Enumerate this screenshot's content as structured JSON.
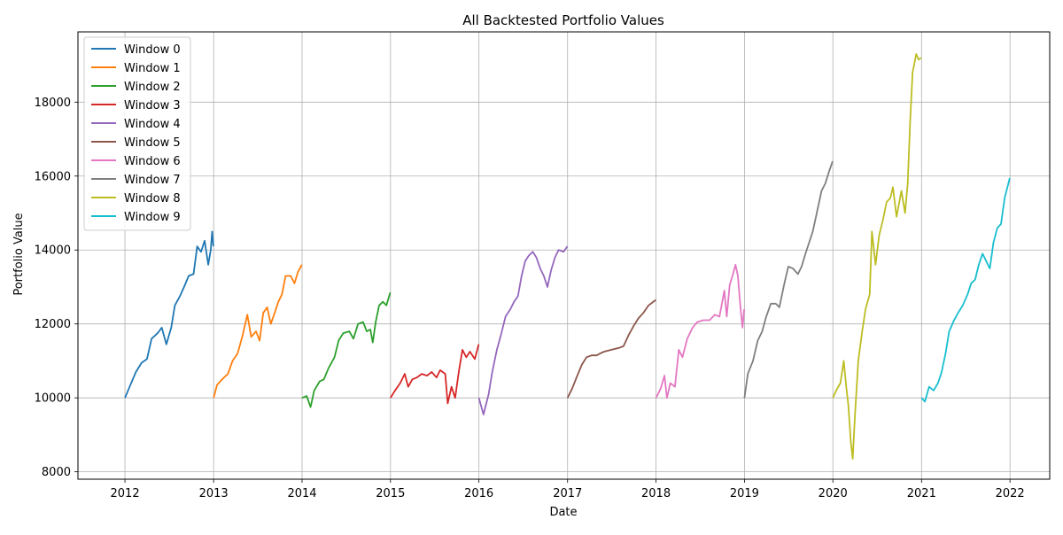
{
  "chart_data": {
    "type": "line",
    "title": "All Backtested Portfolio Values",
    "xlabel": "Date",
    "ylabel": "Portfolio Value",
    "xlim": [
      "2011-06-21",
      "2022-06-14"
    ],
    "ylim": [
      7800,
      19900
    ],
    "xticks": [
      "2012",
      "2013",
      "2014",
      "2015",
      "2016",
      "2017",
      "2018",
      "2019",
      "2020",
      "2021",
      "2022"
    ],
    "yticks": [
      8000,
      10000,
      12000,
      14000,
      16000,
      18000
    ],
    "grid": true,
    "legend_position": "top-left",
    "series": [
      {
        "name": "Window 0",
        "color": "#1f77b4",
        "points": [
          [
            "2012-01-01",
            10000
          ],
          [
            "2012-01-20",
            10300
          ],
          [
            "2012-02-15",
            10700
          ],
          [
            "2012-03-10",
            10950
          ],
          [
            "2012-04-01",
            11050
          ],
          [
            "2012-04-20",
            11600
          ],
          [
            "2012-05-15",
            11750
          ],
          [
            "2012-06-01",
            11900
          ],
          [
            "2012-06-20",
            11450
          ],
          [
            "2012-07-10",
            11900
          ],
          [
            "2012-07-25",
            12500
          ],
          [
            "2012-08-15",
            12750
          ],
          [
            "2012-09-01",
            13000
          ],
          [
            "2012-09-20",
            13300
          ],
          [
            "2012-10-10",
            13350
          ],
          [
            "2012-10-25",
            14100
          ],
          [
            "2012-11-10",
            13950
          ],
          [
            "2012-11-25",
            14250
          ],
          [
            "2012-12-10",
            13600
          ],
          [
            "2012-12-20",
            14000
          ],
          [
            "2012-12-26",
            14500
          ],
          [
            "2012-12-31",
            14100
          ]
        ]
      },
      {
        "name": "Window 1",
        "color": "#ff7f0e",
        "points": [
          [
            "2013-01-01",
            10000
          ],
          [
            "2013-01-15",
            10350
          ],
          [
            "2013-02-05",
            10500
          ],
          [
            "2013-03-01",
            10650
          ],
          [
            "2013-03-20",
            11000
          ],
          [
            "2013-04-10",
            11200
          ],
          [
            "2013-05-01",
            11700
          ],
          [
            "2013-05-20",
            12250
          ],
          [
            "2013-06-05",
            11650
          ],
          [
            "2013-06-25",
            11800
          ],
          [
            "2013-07-10",
            11550
          ],
          [
            "2013-07-25",
            12300
          ],
          [
            "2013-08-10",
            12450
          ],
          [
            "2013-08-25",
            12000
          ],
          [
            "2013-09-10",
            12300
          ],
          [
            "2013-09-25",
            12600
          ],
          [
            "2013-10-10",
            12800
          ],
          [
            "2013-10-25",
            13300
          ],
          [
            "2013-11-15",
            13300
          ],
          [
            "2013-12-01",
            13100
          ],
          [
            "2013-12-15",
            13400
          ],
          [
            "2013-12-31",
            13600
          ]
        ]
      },
      {
        "name": "Window 2",
        "color": "#2ca02c",
        "points": [
          [
            "2014-01-01",
            10000
          ],
          [
            "2014-01-20",
            10050
          ],
          [
            "2014-02-05",
            9750
          ],
          [
            "2014-02-20",
            10200
          ],
          [
            "2014-03-15",
            10450
          ],
          [
            "2014-04-01",
            10500
          ],
          [
            "2014-04-20",
            10800
          ],
          [
            "2014-05-15",
            11100
          ],
          [
            "2014-06-01",
            11550
          ],
          [
            "2014-06-20",
            11750
          ],
          [
            "2014-07-15",
            11800
          ],
          [
            "2014-08-01",
            11600
          ],
          [
            "2014-08-20",
            12000
          ],
          [
            "2014-09-10",
            12050
          ],
          [
            "2014-09-25",
            11800
          ],
          [
            "2014-10-10",
            11850
          ],
          [
            "2014-10-20",
            11500
          ],
          [
            "2014-11-01",
            12050
          ],
          [
            "2014-11-15",
            12500
          ],
          [
            "2014-12-01",
            12600
          ],
          [
            "2014-12-15",
            12500
          ],
          [
            "2014-12-31",
            12850
          ]
        ]
      },
      {
        "name": "Window 3",
        "color": "#d62728",
        "points": [
          [
            "2015-01-01",
            10000
          ],
          [
            "2015-01-20",
            10200
          ],
          [
            "2015-02-10",
            10400
          ],
          [
            "2015-03-01",
            10650
          ],
          [
            "2015-03-15",
            10300
          ],
          [
            "2015-04-01",
            10500
          ],
          [
            "2015-04-20",
            10550
          ],
          [
            "2015-05-10",
            10650
          ],
          [
            "2015-06-01",
            10600
          ],
          [
            "2015-06-20",
            10700
          ],
          [
            "2015-07-10",
            10550
          ],
          [
            "2015-07-25",
            10750
          ],
          [
            "2015-08-15",
            10650
          ],
          [
            "2015-08-25",
            9850
          ],
          [
            "2015-09-10",
            10300
          ],
          [
            "2015-09-25",
            10000
          ],
          [
            "2015-10-10",
            10700
          ],
          [
            "2015-10-25",
            11300
          ],
          [
            "2015-11-10",
            11100
          ],
          [
            "2015-11-25",
            11250
          ],
          [
            "2015-12-15",
            11050
          ],
          [
            "2015-12-31",
            11450
          ]
        ]
      },
      {
        "name": "Window 4",
        "color": "#9467bd",
        "points": [
          [
            "2016-01-01",
            10000
          ],
          [
            "2016-01-20",
            9550
          ],
          [
            "2016-02-10",
            10100
          ],
          [
            "2016-02-25",
            10700
          ],
          [
            "2016-03-15",
            11300
          ],
          [
            "2016-04-01",
            11700
          ],
          [
            "2016-04-20",
            12200
          ],
          [
            "2016-05-10",
            12400
          ],
          [
            "2016-05-25",
            12600
          ],
          [
            "2016-06-10",
            12750
          ],
          [
            "2016-06-25",
            13300
          ],
          [
            "2016-07-10",
            13700
          ],
          [
            "2016-07-25",
            13850
          ],
          [
            "2016-08-10",
            13950
          ],
          [
            "2016-08-25",
            13800
          ],
          [
            "2016-09-10",
            13500
          ],
          [
            "2016-09-25",
            13300
          ],
          [
            "2016-10-10",
            13000
          ],
          [
            "2016-10-25",
            13450
          ],
          [
            "2016-11-10",
            13800
          ],
          [
            "2016-11-25",
            14000
          ],
          [
            "2016-12-15",
            13950
          ],
          [
            "2016-12-31",
            14100
          ]
        ]
      },
      {
        "name": "Window 5",
        "color": "#8c564b",
        "points": [
          [
            "2017-01-01",
            10000
          ],
          [
            "2017-01-20",
            10250
          ],
          [
            "2017-02-10",
            10600
          ],
          [
            "2017-03-01",
            10900
          ],
          [
            "2017-03-20",
            11100
          ],
          [
            "2017-04-10",
            11150
          ],
          [
            "2017-05-01",
            11150
          ],
          [
            "2017-05-15",
            11200
          ],
          [
            "2017-06-01",
            11250
          ],
          [
            "2017-07-01",
            11300
          ],
          [
            "2017-08-01",
            11350
          ],
          [
            "2017-08-20",
            11400
          ],
          [
            "2017-09-10",
            11700
          ],
          [
            "2017-10-01",
            11950
          ],
          [
            "2017-10-20",
            12150
          ],
          [
            "2017-11-10",
            12300
          ],
          [
            "2017-12-01",
            12500
          ],
          [
            "2017-12-31",
            12650
          ]
        ]
      },
      {
        "name": "Window 6",
        "color": "#e377c2",
        "points": [
          [
            "2018-01-01",
            10000
          ],
          [
            "2018-01-20",
            10250
          ],
          [
            "2018-02-05",
            10600
          ],
          [
            "2018-02-15",
            10000
          ],
          [
            "2018-03-01",
            10400
          ],
          [
            "2018-03-20",
            10300
          ],
          [
            "2018-04-05",
            11300
          ],
          [
            "2018-04-20",
            11100
          ],
          [
            "2018-05-10",
            11600
          ],
          [
            "2018-06-01",
            11900
          ],
          [
            "2018-06-20",
            12050
          ],
          [
            "2018-07-15",
            12100
          ],
          [
            "2018-08-10",
            12100
          ],
          [
            "2018-09-01",
            12250
          ],
          [
            "2018-09-20",
            12200
          ],
          [
            "2018-10-10",
            12900
          ],
          [
            "2018-10-20",
            12200
          ],
          [
            "2018-11-01",
            13050
          ],
          [
            "2018-11-15",
            13350
          ],
          [
            "2018-11-25",
            13600
          ],
          [
            "2018-12-05",
            13300
          ],
          [
            "2018-12-15",
            12500
          ],
          [
            "2018-12-24",
            11900
          ],
          [
            "2018-12-31",
            12400
          ]
        ]
      },
      {
        "name": "Window 7",
        "color": "#7f7f7f",
        "points": [
          [
            "2019-01-01",
            10000
          ],
          [
            "2019-01-15",
            10650
          ],
          [
            "2019-02-05",
            11000
          ],
          [
            "2019-02-25",
            11550
          ],
          [
            "2019-03-15",
            11800
          ],
          [
            "2019-04-01",
            12200
          ],
          [
            "2019-04-20",
            12550
          ],
          [
            "2019-05-10",
            12550
          ],
          [
            "2019-05-25",
            12450
          ],
          [
            "2019-06-15",
            13100
          ],
          [
            "2019-07-01",
            13550
          ],
          [
            "2019-07-20",
            13500
          ],
          [
            "2019-08-10",
            13350
          ],
          [
            "2019-08-25",
            13550
          ],
          [
            "2019-09-10",
            13900
          ],
          [
            "2019-09-25",
            14200
          ],
          [
            "2019-10-10",
            14500
          ],
          [
            "2019-10-25",
            14950
          ],
          [
            "2019-11-15",
            15600
          ],
          [
            "2019-12-01",
            15800
          ],
          [
            "2019-12-15",
            16100
          ],
          [
            "2019-12-31",
            16400
          ]
        ]
      },
      {
        "name": "Window 8",
        "color": "#bcbd22",
        "points": [
          [
            "2020-01-01",
            10000
          ],
          [
            "2020-01-15",
            10200
          ],
          [
            "2020-02-01",
            10400
          ],
          [
            "2020-02-15",
            11000
          ],
          [
            "2020-02-25",
            10300
          ],
          [
            "2020-03-05",
            9800
          ],
          [
            "2020-03-15",
            8800
          ],
          [
            "2020-03-23",
            8350
          ],
          [
            "2020-04-01",
            9500
          ],
          [
            "2020-04-15",
            11000
          ],
          [
            "2020-05-01",
            11800
          ],
          [
            "2020-05-15",
            12400
          ],
          [
            "2020-06-01",
            12800
          ],
          [
            "2020-06-10",
            14500
          ],
          [
            "2020-06-25",
            13600
          ],
          [
            "2020-07-10",
            14400
          ],
          [
            "2020-07-25",
            14800
          ],
          [
            "2020-08-10",
            15300
          ],
          [
            "2020-08-25",
            15400
          ],
          [
            "2020-09-05",
            15700
          ],
          [
            "2020-09-20",
            14900
          ],
          [
            "2020-10-10",
            15600
          ],
          [
            "2020-10-25",
            15000
          ],
          [
            "2020-11-05",
            15800
          ],
          [
            "2020-11-15",
            17500
          ],
          [
            "2020-11-25",
            18800
          ],
          [
            "2020-12-10",
            19300
          ],
          [
            "2020-12-20",
            19150
          ],
          [
            "2020-12-31",
            19200
          ]
        ]
      },
      {
        "name": "Window 9",
        "color": "#17becf",
        "points": [
          [
            "2021-01-01",
            10000
          ],
          [
            "2021-01-15",
            9900
          ],
          [
            "2021-02-01",
            10300
          ],
          [
            "2021-02-20",
            10200
          ],
          [
            "2021-03-10",
            10400
          ],
          [
            "2021-03-25",
            10700
          ],
          [
            "2021-04-10",
            11200
          ],
          [
            "2021-04-25",
            11800
          ],
          [
            "2021-05-15",
            12100
          ],
          [
            "2021-06-01",
            12300
          ],
          [
            "2021-06-20",
            12500
          ],
          [
            "2021-07-10",
            12800
          ],
          [
            "2021-07-25",
            13100
          ],
          [
            "2021-08-10",
            13200
          ],
          [
            "2021-08-25",
            13600
          ],
          [
            "2021-09-10",
            13900
          ],
          [
            "2021-09-25",
            13700
          ],
          [
            "2021-10-10",
            13500
          ],
          [
            "2021-10-25",
            14200
          ],
          [
            "2021-11-10",
            14600
          ],
          [
            "2021-11-25",
            14700
          ],
          [
            "2021-12-10",
            15400
          ],
          [
            "2021-12-31",
            15950
          ]
        ]
      }
    ]
  }
}
